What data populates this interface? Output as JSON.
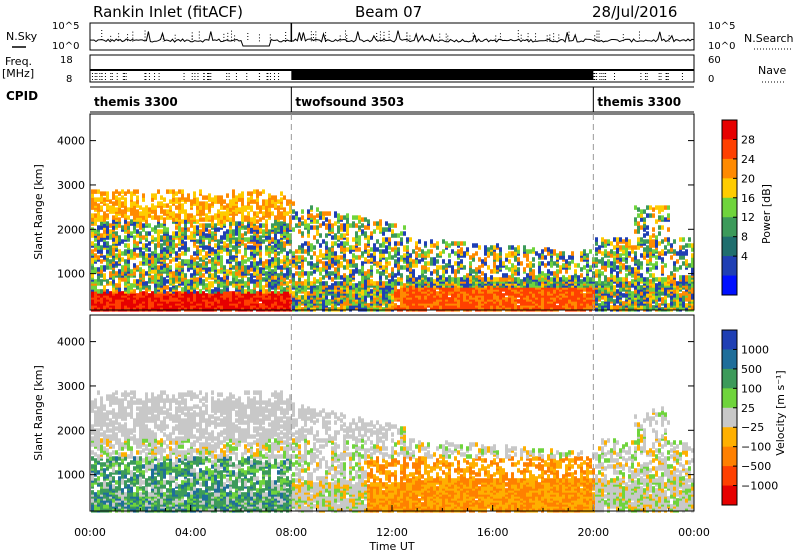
{
  "header": {
    "station": "Rankin Inlet (fitACF)",
    "beam": "Beam 07",
    "date": "28/Jul/2016"
  },
  "left_labels": {
    "nsky": "N.Sky",
    "freq": "Freq.",
    "freq_unit": "[MHz]",
    "cpid": "CPID"
  },
  "right_labels": {
    "nsearch": "N.Search",
    "nave": "Nave"
  },
  "chart_data": [
    {
      "type": "line",
      "name": "noise",
      "yticks_left": [
        "10^5",
        "10^0"
      ],
      "yticks_right": [
        "10^5",
        "10^0"
      ]
    },
    {
      "type": "line",
      "name": "frequency",
      "yticks_left": [
        "18",
        "8"
      ],
      "yticks_right": [
        "60",
        "0"
      ]
    },
    {
      "type": "table",
      "name": "cpid",
      "segments": [
        {
          "label": "themis 3300",
          "start_h": 0,
          "end_h": 8
        },
        {
          "label": "twofsound 3503",
          "start_h": 8,
          "end_h": 20
        },
        {
          "label": "themis 3300",
          "start_h": 20,
          "end_h": 24
        }
      ]
    },
    {
      "type": "heatmap",
      "name": "power",
      "ylabel": "Slant Range [km]",
      "yticks": [
        1000,
        2000,
        3000,
        4000
      ],
      "ylim": [
        180,
        4600
      ],
      "colorbar_label": "Power [dB]",
      "colorbar_ticks": [
        "28",
        "24",
        "20",
        "16",
        "12",
        "8",
        "4"
      ],
      "colors": [
        "#e60000",
        "#ff4000",
        "#ff8a00",
        "#ffcc00",
        "#6fd43c",
        "#3c9a5a",
        "#1f6e6e",
        "#1f3fb4",
        "#0010ff"
      ]
    },
    {
      "type": "heatmap",
      "name": "velocity",
      "ylabel": "Slant Range [km]",
      "yticks": [
        1000,
        2000,
        3000,
        4000
      ],
      "ylim": [
        180,
        4600
      ],
      "colorbar_label": "Velocity [m s⁻¹]",
      "colorbar_ticks": [
        "1000",
        "500",
        "100",
        "25",
        "−25",
        "−100",
        "−500",
        "−1000"
      ],
      "colors": [
        "#1f3fb4",
        "#1f6e9a",
        "#3c9a5a",
        "#6fd43c",
        "#c8c8c8",
        "#ffb000",
        "#ff8000",
        "#ff4000",
        "#e60000"
      ]
    }
  ],
  "xaxis": {
    "label": "Time UT",
    "ticks": [
      "00:00",
      "04:00",
      "08:00",
      "12:00",
      "16:00",
      "20:00",
      "00:00"
    ],
    "hours": [
      0,
      4,
      8,
      12,
      16,
      20,
      24
    ]
  }
}
